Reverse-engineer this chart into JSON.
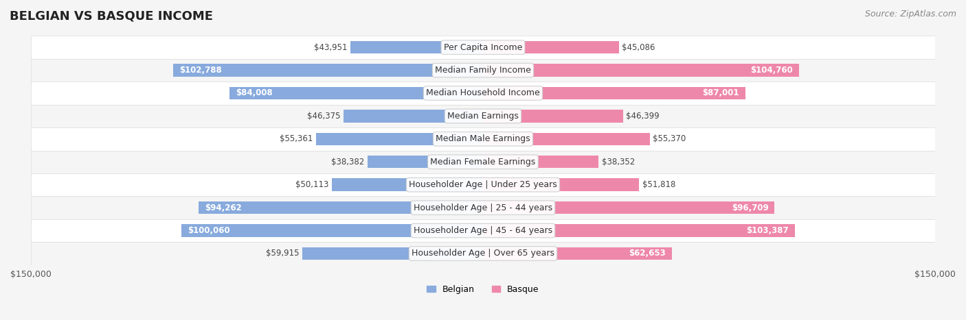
{
  "title": "BELGIAN VS BASQUE INCOME",
  "source": "Source: ZipAtlas.com",
  "categories": [
    "Per Capita Income",
    "Median Family Income",
    "Median Household Income",
    "Median Earnings",
    "Median Male Earnings",
    "Median Female Earnings",
    "Householder Age | Under 25 years",
    "Householder Age | 25 - 44 years",
    "Householder Age | 45 - 64 years",
    "Householder Age | Over 65 years"
  ],
  "belgian_values": [
    43951,
    102788,
    84008,
    46375,
    55361,
    38382,
    50113,
    94262,
    100060,
    59915
  ],
  "basque_values": [
    45086,
    104760,
    87001,
    46399,
    55370,
    38352,
    51818,
    96709,
    103387,
    62653
  ],
  "belgian_color": "#88AADD",
  "belgian_color_dark": "#5588CC",
  "basque_color": "#EE88AA",
  "basque_color_dark": "#DD5588",
  "max_value": 150000,
  "bg_color": "#F5F5F5",
  "row_bg": "#FFFFFF",
  "row_alt_bg": "#F0F0F0",
  "label_bg": "#FFFFFF",
  "title_color": "#222222",
  "source_color": "#888888",
  "value_text_dark": "#444444",
  "value_text_light": "#FFFFFF",
  "bar_height": 0.55,
  "ylabel_fontsize": 9,
  "title_fontsize": 13,
  "source_fontsize": 9,
  "value_fontsize": 8.5
}
